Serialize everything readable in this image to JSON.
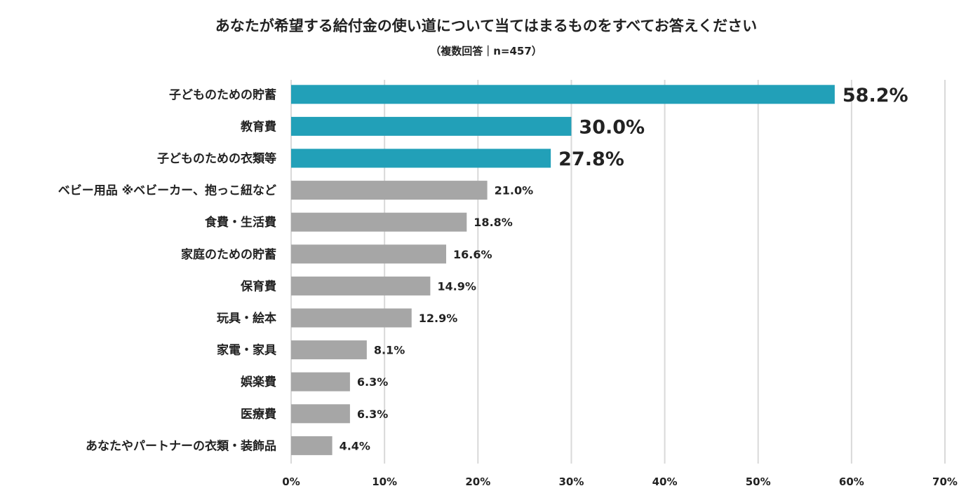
{
  "chart_data": {
    "type": "bar",
    "orientation": "horizontal",
    "title": "あなたが希望する給付金の使い道について当てはまるものをすべてお答えください",
    "subtitle": "（複数回答｜n=457）",
    "categories": [
      "子どものための貯蓄",
      "教育費",
      "子どものための衣類等",
      "ベビー用品 ※ベビーカー、抱っこ紐など",
      "食費・生活費",
      "家庭のための貯蓄",
      "保育費",
      "玩具・絵本",
      "家電・家具",
      "娯楽費",
      "医療費",
      "あなたやパートナーの衣類・装飾品"
    ],
    "values": [
      58.2,
      30.0,
      27.8,
      21.0,
      18.8,
      16.6,
      14.9,
      12.9,
      8.1,
      6.3,
      6.3,
      4.4
    ],
    "value_labels": [
      "58.2%",
      "30.0%",
      "27.8%",
      "21.0%",
      "18.8%",
      "16.6%",
      "14.9%",
      "12.9%",
      "8.1%",
      "6.3%",
      "6.3%",
      "4.4%"
    ],
    "highlighted_count": 3,
    "xlim": [
      0,
      70
    ],
    "x_ticks": [
      0,
      10,
      20,
      30,
      40,
      50,
      60,
      70
    ],
    "x_tick_labels": [
      "0%",
      "10%",
      "20%",
      "30%",
      "40%",
      "50%",
      "60%",
      "70%"
    ],
    "xlabel": "",
    "ylabel": "",
    "grid": "vertical",
    "legend": "none"
  },
  "colors": {
    "highlight": "#22A0B8",
    "default": "#A6A6A6",
    "grid": "#D9D9D9",
    "text": "#222222"
  }
}
